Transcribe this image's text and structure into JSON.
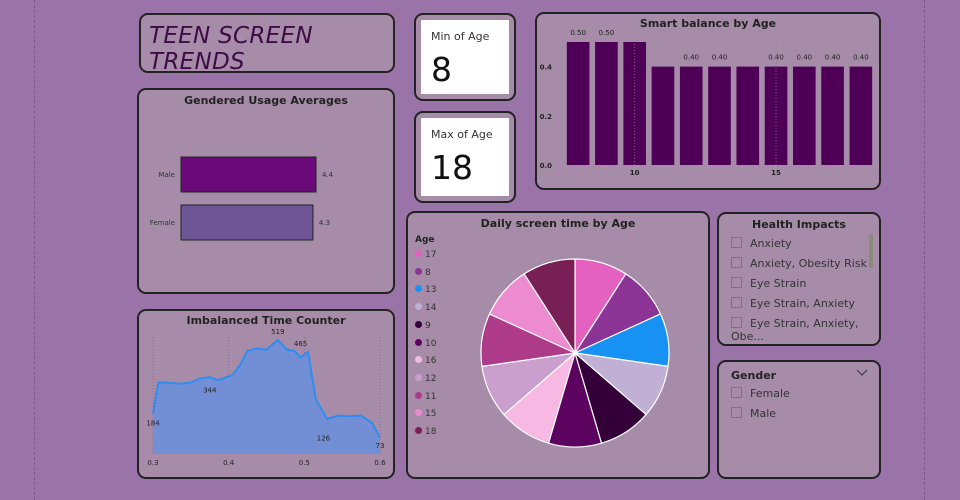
{
  "title": "TEEN SCREEN TRENDS",
  "kpis": {
    "min_age": {
      "label": "Min of Age",
      "value": "8"
    },
    "max_age": {
      "label": "Max of Age",
      "value": "18"
    }
  },
  "gender_chart": {
    "title": "Gendered Usage Averages",
    "chart_data": {
      "type": "bar",
      "orientation": "horizontal",
      "categories": [
        "Male",
        "Female"
      ],
      "values": [
        4.4,
        4.3
      ],
      "data_labels": [
        "4.4",
        "4.3"
      ],
      "colors": [
        "#6a0a78",
        "#6e5595"
      ],
      "xlim": [
        0,
        4.4
      ]
    }
  },
  "smart_balance": {
    "title": "Smart balance by Age",
    "chart_data": {
      "type": "bar",
      "x": [
        8,
        9,
        10,
        11,
        12,
        13,
        14,
        15,
        16,
        17,
        18
      ],
      "values": [
        0.5,
        0.5,
        0.5,
        0.4,
        0.4,
        0.4,
        0.4,
        0.4,
        0.4,
        0.4,
        0.4
      ],
      "data_labels": [
        "0.50",
        "0.50",
        "",
        "",
        "0.40",
        "0.40",
        "",
        "0.40",
        "0.40",
        "0.40",
        "0.40"
      ],
      "y_ticks": [
        "0.0",
        "0.2",
        "0.4"
      ],
      "x_ticks": [
        {
          "value": 10,
          "label": "10"
        },
        {
          "value": 15,
          "label": "15"
        }
      ],
      "ylim": [
        0,
        0.5
      ],
      "color": "#4d0055"
    }
  },
  "time_counter": {
    "title": "Imbalanced Time Counter",
    "chart_data": {
      "type": "area",
      "x": [
        0.3,
        0.307,
        0.32,
        0.335,
        0.35,
        0.362,
        0.375,
        0.385,
        0.392,
        0.405,
        0.415,
        0.425,
        0.437,
        0.45,
        0.465,
        0.477,
        0.487,
        0.495,
        0.505,
        0.515,
        0.53,
        0.545,
        0.56,
        0.575,
        0.59,
        0.6
      ],
      "values": [
        184,
        325,
        325,
        320,
        325,
        344,
        350,
        336,
        344,
        360,
        405,
        470,
        480,
        475,
        519,
        475,
        470,
        440,
        465,
        250,
        160,
        175,
        172,
        175,
        140,
        73
      ],
      "point_labels": [
        {
          "x": 0.3,
          "y": 184,
          "text": "184"
        },
        {
          "x": 0.375,
          "y": 344,
          "text": "344"
        },
        {
          "x": 0.465,
          "y": 519,
          "text": "519"
        },
        {
          "x": 0.495,
          "y": 465,
          "text": "465"
        },
        {
          "x": 0.52,
          "y": 126,
          "text": "126"
        },
        {
          "x": 0.6,
          "y": 73,
          "text": "73"
        }
      ],
      "x_ticks": [
        "0.3",
        "0.4",
        "0.5",
        "0.6"
      ],
      "xlim": [
        0.3,
        0.6
      ],
      "ylim": [
        0,
        560
      ],
      "line_color": "#2f8cf0",
      "fill_color": "#6f8fd8"
    }
  },
  "screen_time_pie": {
    "title": "Daily screen time by Age",
    "legend_title": "Age",
    "chart_data": {
      "type": "pie",
      "categories": [
        "17",
        "8",
        "13",
        "14",
        "9",
        "10",
        "16",
        "12",
        "11",
        "15",
        "18"
      ],
      "values": [
        9.09,
        9.09,
        9.09,
        9.09,
        9.09,
        9.09,
        9.09,
        9.09,
        9.09,
        9.09,
        9.09
      ],
      "colors": [
        "#e561c0",
        "#8b3496",
        "#1891f5",
        "#c0b0d5",
        "#33003a",
        "#5b035f",
        "#f7b8e3",
        "#ca9fcd",
        "#ae3a8a",
        "#ec8bd0",
        "#782055"
      ],
      "pie_order": [
        "17",
        "8",
        "13",
        "14",
        "9",
        "10",
        "16",
        "12",
        "11",
        "15",
        "18"
      ]
    }
  },
  "health_slicer": {
    "title": "Health Impacts",
    "items": [
      "Anxiety",
      "Anxiety, Obesity Risk",
      "Eye Strain",
      "Eye Strain, Anxiety",
      "Eye Strain, Anxiety, Obe..."
    ]
  },
  "gender_slicer": {
    "title": "Gender",
    "items": [
      "Female",
      "Male"
    ],
    "icon": "chevron-down-icon"
  }
}
